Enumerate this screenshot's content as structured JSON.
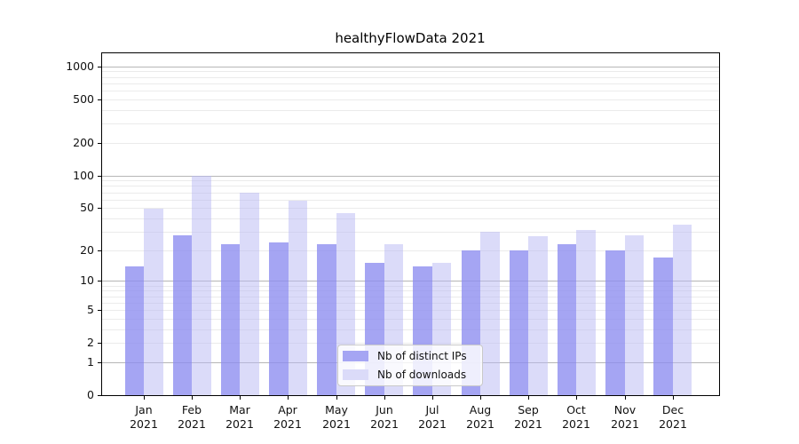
{
  "chart_data": {
    "type": "bar",
    "title": "healthyFlowData 2021",
    "categories": [
      "Jan 2021",
      "Feb 2021",
      "Mar 2021",
      "Apr 2021",
      "May 2021",
      "Jun 2021",
      "Jul 2021",
      "Aug 2021",
      "Sep 2021",
      "Oct 2021",
      "Nov 2021",
      "Dec 2021"
    ],
    "series": [
      {
        "name": "Nb of distinct IPs",
        "color": "#a5a5f3",
        "values": [
          14,
          28,
          23,
          24,
          23,
          15,
          14,
          20,
          20,
          23,
          20,
          17
        ]
      },
      {
        "name": "Nb of downloads",
        "color": "#dbdbf9",
        "values": [
          49,
          100,
          70,
          59,
          45,
          23,
          15,
          30,
          27,
          31,
          28,
          35
        ]
      }
    ],
    "xlabel": "",
    "ylabel": "",
    "y_axis": {
      "scale": "log10(value+1)",
      "ticks": [
        0,
        1,
        2,
        5,
        10,
        20,
        50,
        100,
        200,
        500,
        1000
      ],
      "range": [
        0,
        1342
      ]
    },
    "legend": {
      "position": "lower-center-inside",
      "entries": [
        "Nb of distinct IPs",
        "Nb of downloads"
      ]
    },
    "grid": {
      "major_color": "#b6b6b6",
      "minor_color": "#ebebeb",
      "major_at": [
        1,
        10,
        100,
        1000
      ]
    }
  }
}
